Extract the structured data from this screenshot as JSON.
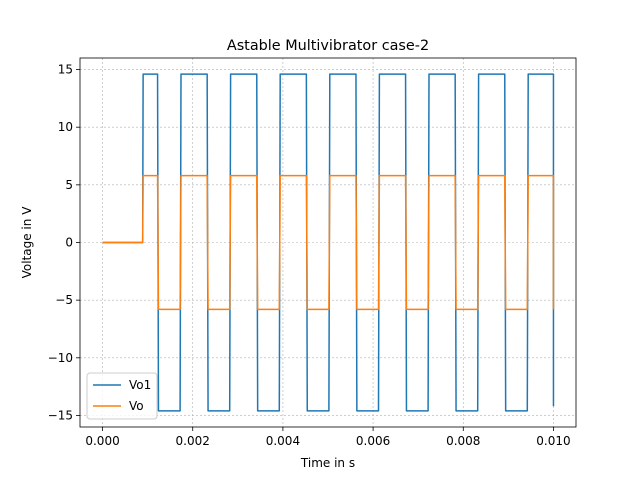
{
  "chart_data": {
    "type": "line",
    "title": "Astable Multivibrator case-2",
    "xlabel": "Time in s",
    "ylabel": "Voltage in V",
    "xlim": [
      -0.0005,
      0.0105
    ],
    "ylim": [
      -16.0,
      16.0
    ],
    "xticks": [
      0.0,
      0.002,
      0.004,
      0.006,
      0.008,
      0.01
    ],
    "xtick_labels": [
      "0.000",
      "0.002",
      "0.004",
      "0.006",
      "0.008",
      "0.010"
    ],
    "yticks": [
      -15,
      -10,
      -5,
      0,
      5,
      10,
      15
    ],
    "ytick_labels": [
      "−15",
      "−10",
      "−5",
      "0",
      "5",
      "10",
      "15"
    ],
    "grid": true,
    "legend_position": "lower-left",
    "series": [
      {
        "name": "Vo1",
        "color": "#1f77b4",
        "x": [
          0.0,
          0.00089,
          0.0009,
          0.00122,
          0.00124,
          0.00172,
          0.00174,
          0.00232,
          0.00234,
          0.00282,
          0.00284,
          0.00342,
          0.00344,
          0.00392,
          0.00394,
          0.00452,
          0.00454,
          0.00502,
          0.00504,
          0.00562,
          0.00564,
          0.00612,
          0.00614,
          0.00672,
          0.00674,
          0.00722,
          0.00724,
          0.00782,
          0.00784,
          0.00832,
          0.00834,
          0.00892,
          0.00894,
          0.00942,
          0.00944,
          0.01,
          0.0100001
        ],
        "y": [
          0.0,
          0.0,
          14.6,
          14.6,
          -14.6,
          -14.6,
          14.6,
          14.6,
          -14.6,
          -14.6,
          14.6,
          14.6,
          -14.6,
          -14.6,
          14.6,
          14.6,
          -14.6,
          -14.6,
          14.6,
          14.6,
          -14.6,
          -14.6,
          14.6,
          14.6,
          -14.6,
          -14.6,
          14.6,
          14.6,
          -14.6,
          -14.6,
          14.6,
          14.6,
          -14.6,
          -14.6,
          14.6,
          14.6,
          -14.2
        ]
      },
      {
        "name": "Vo",
        "color": "#ff7f0e",
        "x": [
          0.0,
          0.00089,
          0.0009,
          0.00122,
          0.00124,
          0.00172,
          0.00174,
          0.00232,
          0.00234,
          0.00282,
          0.00284,
          0.00342,
          0.00344,
          0.00392,
          0.00394,
          0.00452,
          0.00454,
          0.00502,
          0.00504,
          0.00562,
          0.00564,
          0.00612,
          0.00614,
          0.00672,
          0.00674,
          0.00722,
          0.00724,
          0.00782,
          0.00784,
          0.00832,
          0.00834,
          0.00892,
          0.00894,
          0.00942,
          0.00944,
          0.01,
          0.0100001
        ],
        "y": [
          0.0,
          0.0,
          5.8,
          5.8,
          -5.8,
          -5.8,
          5.8,
          5.8,
          -5.8,
          -5.8,
          5.8,
          5.8,
          -5.8,
          -5.8,
          5.8,
          5.8,
          -5.8,
          -5.8,
          5.8,
          5.8,
          -5.8,
          -5.8,
          5.8,
          5.8,
          -5.8,
          -5.8,
          5.8,
          5.8,
          -5.8,
          -5.8,
          5.8,
          5.8,
          -5.8,
          -5.8,
          5.8,
          5.8,
          -5.8
        ]
      }
    ]
  }
}
